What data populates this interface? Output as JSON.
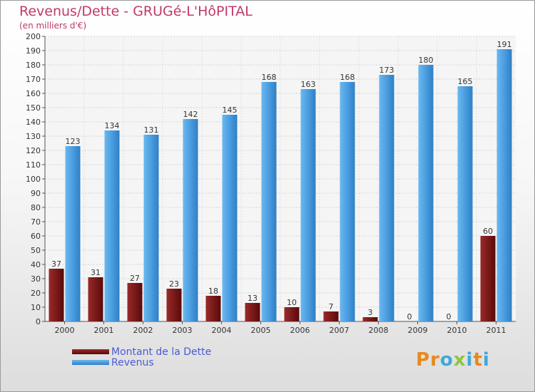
{
  "title": "Revenus/Dette - GRUGé-L'HôPITAL",
  "subtitle": "(en milliers d'€)",
  "chart_data": {
    "type": "bar",
    "categories": [
      "2000",
      "2001",
      "2002",
      "2003",
      "2004",
      "2005",
      "2006",
      "2007",
      "2008",
      "2009",
      "2010",
      "2011"
    ],
    "series": [
      {
        "name": "Montant de la Dette",
        "values": [
          37,
          31,
          27,
          23,
          18,
          13,
          10,
          7,
          3,
          0,
          0,
          60
        ],
        "color": "#7a1a1a"
      },
      {
        "name": "Revenus",
        "values": [
          123,
          134,
          131,
          142,
          145,
          168,
          163,
          168,
          173,
          180,
          165,
          191
        ],
        "color": "#4a9de0"
      }
    ],
    "ylim": [
      0,
      200
    ],
    "ytick_step": 10,
    "grid": true,
    "legend_position": "bottom-left"
  },
  "legend": {
    "items": [
      {
        "label": "Montant de la Dette",
        "color": "#7a1a1a"
      },
      {
        "label": "Revenus",
        "color": "#4a9de0"
      }
    ]
  },
  "logo": {
    "text": "Proxiti"
  }
}
